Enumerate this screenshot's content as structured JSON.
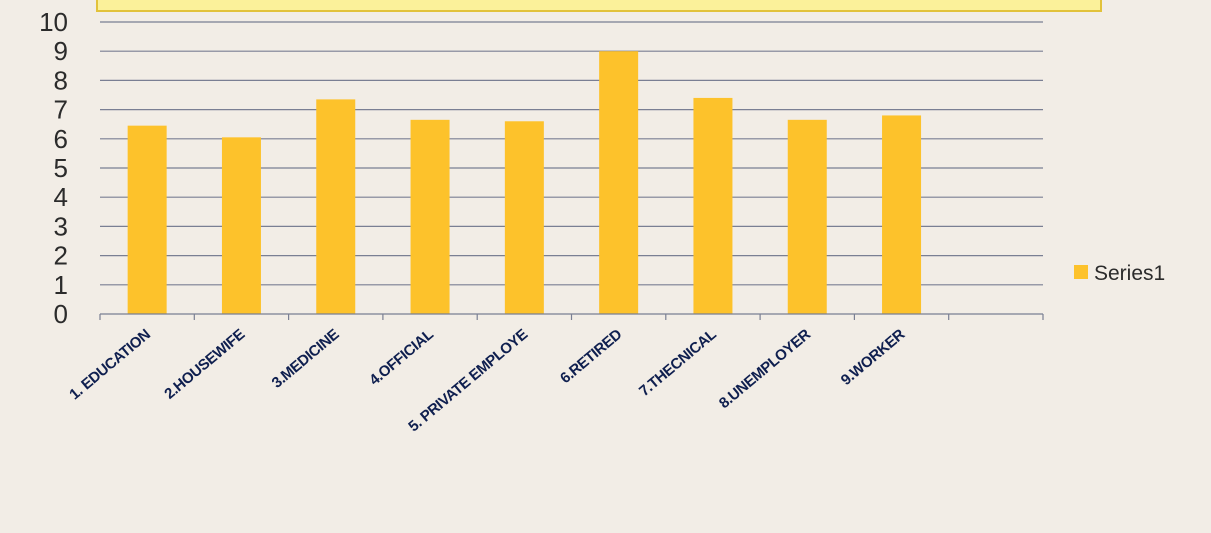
{
  "colors": {
    "background": "#f2ede6",
    "bar": "#fdc22b",
    "banner_fill": "#fbf19a",
    "banner_border": "#e2c23a",
    "gridline": "#7a7f93",
    "axis_text": "#2b2b2b",
    "category_text": "#0f1f4f"
  },
  "chart_data": {
    "type": "bar",
    "categories": [
      "1. EDUCATION",
      "2.HOUSEWIFE",
      "3.MEDICINE",
      "4.OFFICIAL",
      "5. PRIVATE EMPLOYE",
      "6.RETIRED",
      "7.THECNICAL",
      "8.UNEMPLOYER",
      "9.WORKER",
      ""
    ],
    "series": [
      {
        "name": "Series1",
        "values": [
          6.45,
          6.05,
          7.35,
          6.65,
          6.6,
          9.0,
          7.4,
          6.65,
          6.8,
          null
        ]
      }
    ],
    "ylim": [
      0,
      10
    ],
    "yticks": [
      0,
      1,
      2,
      3,
      4,
      5,
      6,
      7,
      8,
      9,
      10
    ],
    "grid": true,
    "legend_position": "right"
  }
}
